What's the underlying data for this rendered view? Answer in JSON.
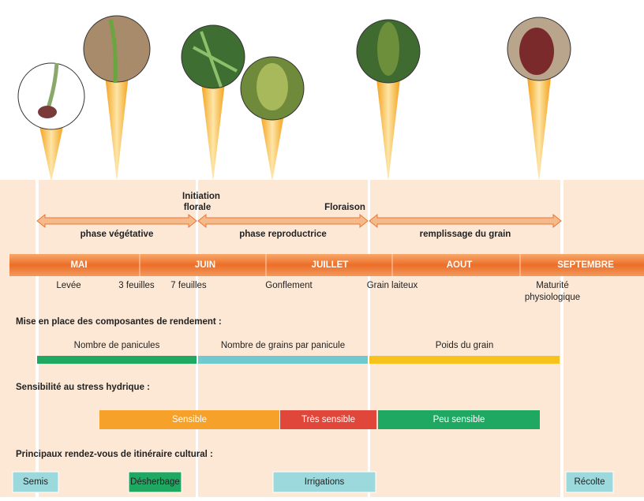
{
  "annotations": {
    "initiation": "Initiation florale",
    "floraison": "Floraison"
  },
  "phases": [
    "phase végétative",
    "phase reproductrice",
    "remplissage du grain"
  ],
  "months": [
    "MAI",
    "JUIN",
    "JUILLET",
    "AOUT",
    "SEPTEMBRE"
  ],
  "stages": [
    "Levée",
    "3 feuilles",
    "7 feuilles",
    "Gonflement",
    "Grain laiteux",
    "Maturité physiologique"
  ],
  "yield_components": {
    "title": "Mise en place des composantes de rendement :",
    "items": [
      "Nombre de panicules",
      "Nombre de grains par panicule",
      "Poids du grain"
    ]
  },
  "water_stress": {
    "title": "Sensibilité au stress hydrique :",
    "items": [
      "Sensible",
      "Très sensible",
      "Peu sensible"
    ]
  },
  "schedule": {
    "title": "Principaux rendez-vous de itinéraire cultural :",
    "items": [
      "Semis",
      "Désherbage",
      "Irrigations",
      "Récolte"
    ]
  }
}
